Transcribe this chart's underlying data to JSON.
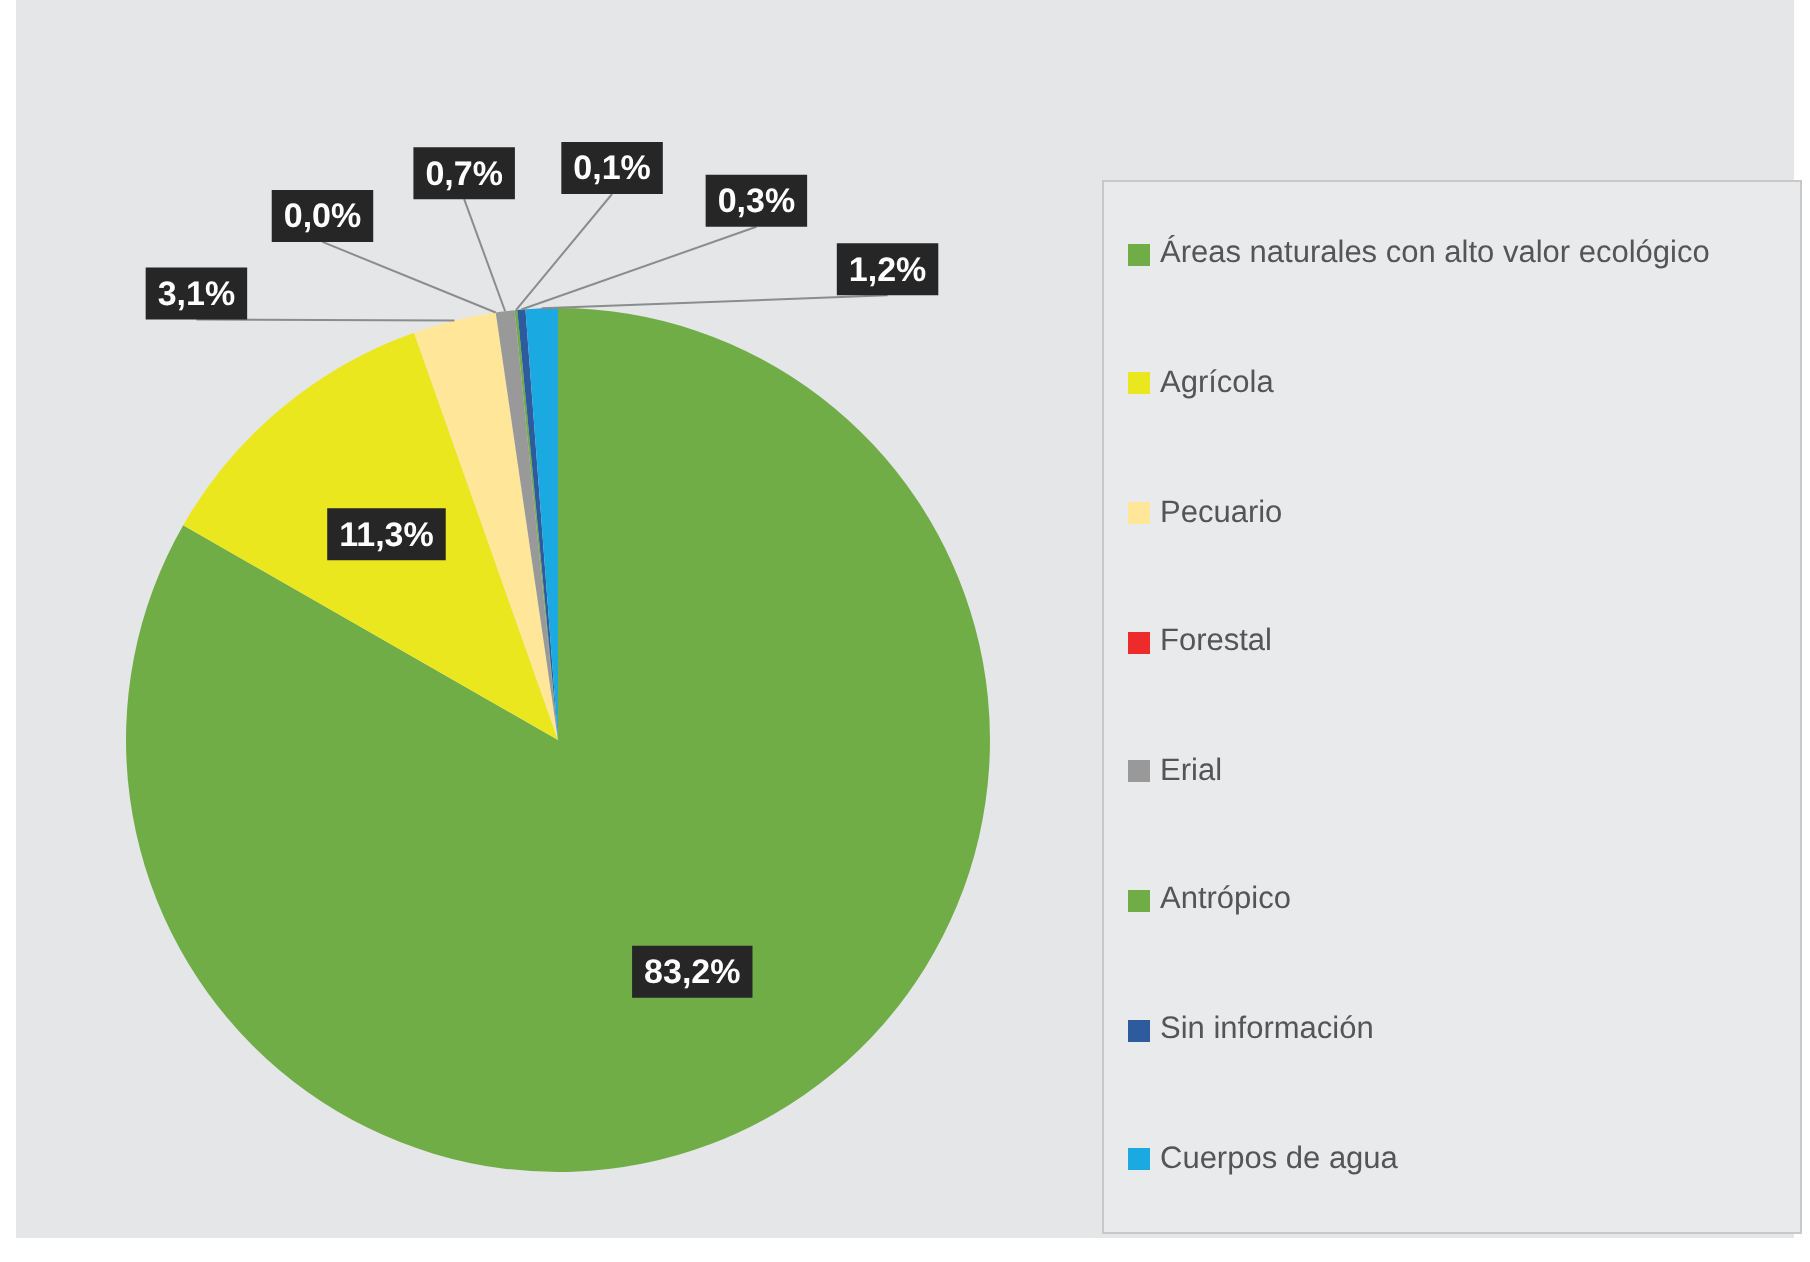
{
  "chart_data": {
    "type": "pie",
    "categories": [
      "Áreas naturales con alto valor ecológico",
      "Agrícola",
      "Pecuario",
      "Forestal",
      "Erial",
      "Antrópico",
      "Sin información",
      "Cuerpos de agua"
    ],
    "values": [
      83.2,
      11.3,
      3.1,
      0.0,
      0.7,
      0.1,
      0.3,
      1.2
    ],
    "colors": [
      "#70ad47",
      "#ebe71f",
      "#ffe699",
      "#ee2b2b",
      "#999999",
      "#70ad47",
      "#2e5a9e",
      "#1aa9e1"
    ],
    "value_labels": [
      "83,2%",
      "11,3%",
      "3,1%",
      "0,0%",
      "0,7%",
      "0,1%",
      "0,3%",
      "1,2%"
    ],
    "legend": "right"
  }
}
